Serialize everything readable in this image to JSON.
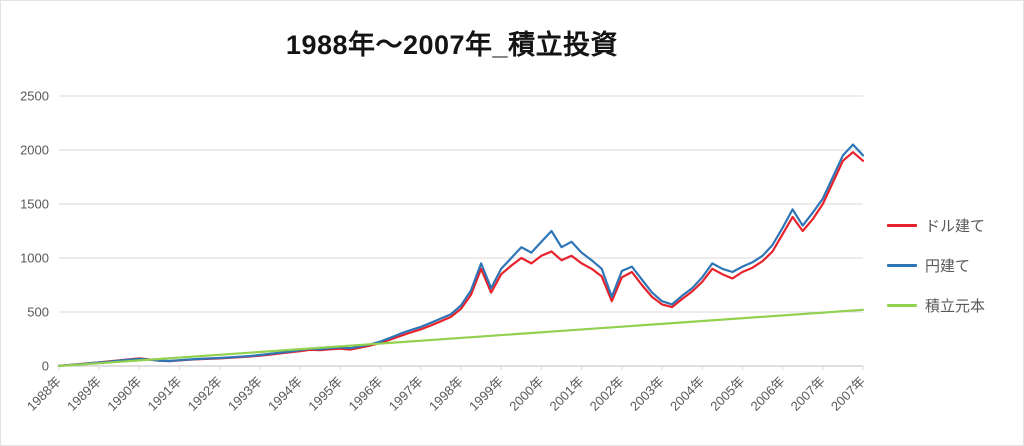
{
  "chart_data": {
    "type": "line",
    "title": "1988年～2007年_積立投資",
    "xlabel": "",
    "ylabel": "",
    "x_range": [
      1988,
      2008
    ],
    "y_range": [
      0,
      2500
    ],
    "y_ticks": [
      0,
      500,
      1000,
      1500,
      2000,
      2500
    ],
    "x_tick_labels": [
      "1988年",
      "1989年",
      "1990年",
      "1991年",
      "1992年",
      "1993年",
      "1994年",
      "1995年",
      "1996年",
      "1997年",
      "1998年",
      "1999年",
      "2000年",
      "2001年",
      "2002年",
      "2003年",
      "2004年",
      "2005年",
      "2006年",
      "2007年",
      "2007年"
    ],
    "grid": "horizontal",
    "legend_position": "right",
    "colors": {
      "grid": "#d9d9d9",
      "axis_line": "#bfbfbf",
      "axis_text": "#595959",
      "title_text": "#141414"
    },
    "x": [
      1988,
      1988.25,
      1988.5,
      1988.75,
      1989,
      1989.25,
      1989.5,
      1989.75,
      1990,
      1990.25,
      1990.5,
      1990.75,
      1991,
      1991.25,
      1991.5,
      1991.75,
      1992,
      1992.25,
      1992.5,
      1992.75,
      1993,
      1993.25,
      1993.5,
      1993.75,
      1994,
      1994.25,
      1994.5,
      1994.75,
      1995,
      1995.25,
      1995.5,
      1995.75,
      1996,
      1996.25,
      1996.5,
      1996.75,
      1997,
      1997.25,
      1997.5,
      1997.75,
      1998,
      1998.25,
      1998.5,
      1998.75,
      1999,
      1999.25,
      1999.5,
      1999.75,
      2000,
      2000.25,
      2000.5,
      2000.75,
      2001,
      2001.25,
      2001.5,
      2001.75,
      2002,
      2002.25,
      2002.5,
      2002.75,
      2003,
      2003.25,
      2003.5,
      2003.75,
      2004,
      2004.25,
      2004.5,
      2004.75,
      2005,
      2005.25,
      2005.5,
      2005.75,
      2006,
      2006.25,
      2006.5,
      2006.75,
      2007,
      2007.25,
      2007.5,
      2007.75,
      2008
    ],
    "series": [
      {
        "key": "usd",
        "name": "ドル建て",
        "color": "#e8222b",
        "values": [
          2,
          9,
          18,
          26,
          34,
          43,
          53,
          62,
          70,
          60,
          48,
          44,
          52,
          58,
          63,
          67,
          70,
          76,
          82,
          88,
          96,
          106,
          117,
          127,
          138,
          150,
          146,
          155,
          160,
          152,
          170,
          190,
          215,
          245,
          280,
          310,
          340,
          375,
          415,
          455,
          530,
          660,
          900,
          680,
          850,
          930,
          1000,
          950,
          1020,
          1060,
          980,
          1020,
          950,
          900,
          830,
          600,
          820,
          870,
          750,
          640,
          570,
          545,
          620,
          690,
          780,
          900,
          850,
          810,
          870,
          910,
          970,
          1060,
          1220,
          1380,
          1250,
          1360,
          1500,
          1700,
          1900,
          1980,
          1900
        ]
      },
      {
        "key": "jpy",
        "name": "円建て",
        "color": "#2e75b6",
        "values": [
          2,
          8,
          16,
          24,
          32,
          40,
          50,
          58,
          66,
          58,
          50,
          46,
          54,
          60,
          66,
          70,
          74,
          80,
          86,
          93,
          102,
          112,
          124,
          134,
          146,
          160,
          155,
          166,
          172,
          165,
          182,
          200,
          228,
          262,
          300,
          332,
          362,
          400,
          440,
          480,
          560,
          700,
          950,
          720,
          900,
          1000,
          1100,
          1050,
          1150,
          1250,
          1100,
          1150,
          1050,
          980,
          900,
          640,
          880,
          920,
          800,
          680,
          600,
          570,
          650,
          720,
          820,
          950,
          900,
          870,
          920,
          960,
          1020,
          1120,
          1280,
          1450,
          1300,
          1420,
          1550,
          1750,
          1950,
          2050,
          1950
        ]
      },
      {
        "key": "principal",
        "name": "積立元本",
        "color": "#92d050",
        "x": [
          1988,
          2008
        ],
        "values": [
          0,
          520
        ]
      }
    ]
  }
}
